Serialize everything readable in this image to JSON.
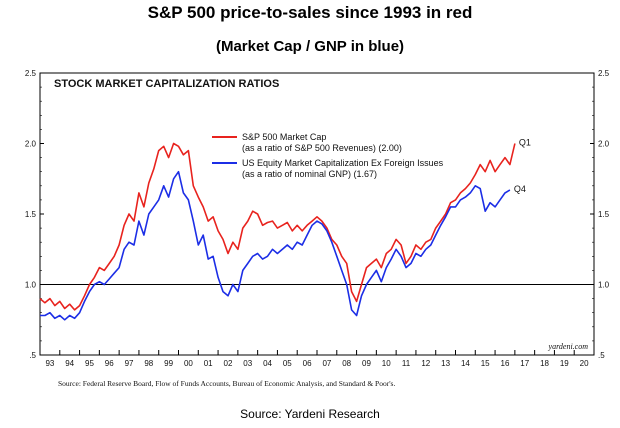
{
  "header": {
    "title": "S&P 500 price-to-sales since 1993 in red",
    "subtitle": "(Market Cap / GNP in blue)"
  },
  "footer": {
    "source": "Source: Yardeni Research"
  },
  "chart_data": {
    "type": "line",
    "title": "STOCK MARKET CAPITALIZATION RATIOS",
    "source_note": "Source: Federal Reserve Board, Flow of Funds Accounts, Bureau of Economic Analysis, and Standard & Poor's.",
    "watermark": "yardeni.com",
    "xlim": [
      1993,
      2021
    ],
    "ylim": [
      0.5,
      2.5
    ],
    "x_tick_labels": [
      "93",
      "94",
      "95",
      "96",
      "97",
      "98",
      "99",
      "00",
      "01",
      "02",
      "03",
      "04",
      "05",
      "06",
      "07",
      "08",
      "09",
      "10",
      "11",
      "12",
      "13",
      "14",
      "15",
      "16",
      "17",
      "18",
      "19",
      "20"
    ],
    "y_tick_labels": [
      {
        "value": 0.5,
        "label": ".5"
      },
      {
        "value": 1.0,
        "label": "1.0"
      },
      {
        "value": 1.5,
        "label": "1.5"
      },
      {
        "value": 2.0,
        "label": "2.0"
      },
      {
        "value": 2.5,
        "label": "2.5"
      }
    ],
    "reference_line": 1.0,
    "grid": false,
    "legend": "top-center",
    "series": [
      {
        "name": "S&P 500 Market Cap",
        "name_line2": "(as a ratio of S&P 500 Revenues) (2.00)",
        "end_label": "Q1",
        "color": "#e8231e",
        "x": [
          1993.0,
          1993.25,
          1993.5,
          1993.75,
          1994.0,
          1994.25,
          1994.5,
          1994.75,
          1995.0,
          1995.25,
          1995.5,
          1995.75,
          1996.0,
          1996.25,
          1996.5,
          1996.75,
          1997.0,
          1997.25,
          1997.5,
          1997.75,
          1998.0,
          1998.25,
          1998.5,
          1998.75,
          1999.0,
          1999.25,
          1999.5,
          1999.75,
          2000.0,
          2000.25,
          2000.5,
          2000.75,
          2001.0,
          2001.25,
          2001.5,
          2001.75,
          2002.0,
          2002.25,
          2002.5,
          2002.75,
          2003.0,
          2003.25,
          2003.5,
          2003.75,
          2004.0,
          2004.25,
          2004.5,
          2004.75,
          2005.0,
          2005.25,
          2005.5,
          2005.75,
          2006.0,
          2006.25,
          2006.5,
          2006.75,
          2007.0,
          2007.25,
          2007.5,
          2007.75,
          2008.0,
          2008.25,
          2008.5,
          2008.75,
          2009.0,
          2009.25,
          2009.5,
          2009.75,
          2010.0,
          2010.25,
          2010.5,
          2010.75,
          2011.0,
          2011.25,
          2011.5,
          2011.75,
          2012.0,
          2012.25,
          2012.5,
          2012.75,
          2013.0,
          2013.25,
          2013.5,
          2013.75,
          2014.0,
          2014.25,
          2014.5,
          2014.75,
          2015.0,
          2015.25,
          2015.5,
          2015.75,
          2016.0,
          2016.25,
          2016.5,
          2016.75,
          2017.0
        ],
        "values": [
          0.9,
          0.87,
          0.9,
          0.85,
          0.88,
          0.83,
          0.86,
          0.82,
          0.85,
          0.92,
          1.0,
          1.05,
          1.12,
          1.1,
          1.15,
          1.2,
          1.28,
          1.42,
          1.5,
          1.45,
          1.65,
          1.55,
          1.72,
          1.82,
          1.95,
          1.98,
          1.9,
          2.0,
          1.98,
          1.92,
          1.95,
          1.7,
          1.62,
          1.55,
          1.45,
          1.48,
          1.38,
          1.32,
          1.22,
          1.3,
          1.25,
          1.4,
          1.45,
          1.52,
          1.5,
          1.42,
          1.44,
          1.45,
          1.4,
          1.42,
          1.44,
          1.38,
          1.42,
          1.38,
          1.42,
          1.45,
          1.48,
          1.45,
          1.4,
          1.32,
          1.28,
          1.2,
          1.15,
          0.95,
          0.88,
          1.0,
          1.12,
          1.15,
          1.18,
          1.12,
          1.22,
          1.25,
          1.32,
          1.28,
          1.15,
          1.2,
          1.28,
          1.25,
          1.3,
          1.32,
          1.4,
          1.45,
          1.5,
          1.58,
          1.6,
          1.65,
          1.68,
          1.72,
          1.78,
          1.85,
          1.8,
          1.88,
          1.8,
          1.85,
          1.9,
          1.85,
          2.0
        ]
      },
      {
        "name": "US Equity Market Capitalization Ex Foreign Issues",
        "name_line2": "(as a ratio of nominal GNP) (1.67)",
        "end_label": "Q4",
        "color": "#1c2ee6",
        "x": [
          1993.0,
          1993.25,
          1993.5,
          1993.75,
          1994.0,
          1994.25,
          1994.5,
          1994.75,
          1995.0,
          1995.25,
          1995.5,
          1995.75,
          1996.0,
          1996.25,
          1996.5,
          1996.75,
          1997.0,
          1997.25,
          1997.5,
          1997.75,
          1998.0,
          1998.25,
          1998.5,
          1998.75,
          1999.0,
          1999.25,
          1999.5,
          1999.75,
          2000.0,
          2000.25,
          2000.5,
          2000.75,
          2001.0,
          2001.25,
          2001.5,
          2001.75,
          2002.0,
          2002.25,
          2002.5,
          2002.75,
          2003.0,
          2003.25,
          2003.5,
          2003.75,
          2004.0,
          2004.25,
          2004.5,
          2004.75,
          2005.0,
          2005.25,
          2005.5,
          2005.75,
          2006.0,
          2006.25,
          2006.5,
          2006.75,
          2007.0,
          2007.25,
          2007.5,
          2007.75,
          2008.0,
          2008.25,
          2008.5,
          2008.75,
          2009.0,
          2009.25,
          2009.5,
          2009.75,
          2010.0,
          2010.25,
          2010.5,
          2010.75,
          2011.0,
          2011.25,
          2011.5,
          2011.75,
          2012.0,
          2012.25,
          2012.5,
          2012.75,
          2013.0,
          2013.25,
          2013.5,
          2013.75,
          2014.0,
          2014.25,
          2014.5,
          2014.75,
          2015.0,
          2015.25,
          2015.5,
          2015.75,
          2016.0,
          2016.25,
          2016.5,
          2016.75
        ],
        "values": [
          0.78,
          0.78,
          0.8,
          0.76,
          0.78,
          0.75,
          0.78,
          0.76,
          0.8,
          0.88,
          0.95,
          1.0,
          1.02,
          1.0,
          1.04,
          1.08,
          1.12,
          1.25,
          1.3,
          1.28,
          1.45,
          1.35,
          1.5,
          1.55,
          1.6,
          1.7,
          1.62,
          1.75,
          1.8,
          1.65,
          1.6,
          1.45,
          1.28,
          1.35,
          1.18,
          1.2,
          1.05,
          0.95,
          0.92,
          1.0,
          0.95,
          1.1,
          1.15,
          1.2,
          1.22,
          1.18,
          1.2,
          1.25,
          1.22,
          1.25,
          1.28,
          1.25,
          1.3,
          1.28,
          1.35,
          1.42,
          1.45,
          1.43,
          1.38,
          1.3,
          1.2,
          1.1,
          1.0,
          0.82,
          0.78,
          0.92,
          1.0,
          1.05,
          1.1,
          1.02,
          1.12,
          1.18,
          1.25,
          1.2,
          1.12,
          1.15,
          1.22,
          1.2,
          1.25,
          1.28,
          1.35,
          1.42,
          1.48,
          1.55,
          1.55,
          1.6,
          1.62,
          1.65,
          1.7,
          1.68,
          1.52,
          1.58,
          1.55,
          1.6,
          1.65,
          1.67
        ]
      }
    ]
  }
}
